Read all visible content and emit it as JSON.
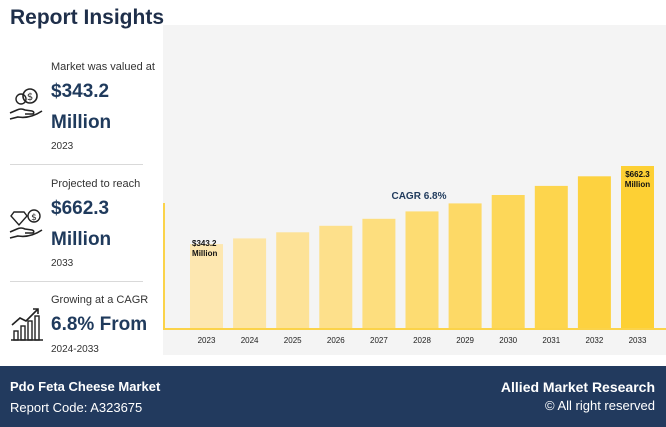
{
  "title": "Report Insights",
  "stats": [
    {
      "caption": "Market was valued at",
      "value_line1": "$343.2",
      "value_line2": "Million",
      "period": "2023",
      "icon": "money-in-hand-icon"
    },
    {
      "caption": "Projected to reach",
      "value_line1": "$662.3",
      "value_line2": "Million",
      "period": "2033",
      "icon": "diamond-coin-hand-icon"
    },
    {
      "caption": "Growing at a CAGR",
      "value_line1": "6.8% From",
      "period": "2024-2033",
      "icon": "growth-chart-icon"
    }
  ],
  "footer": {
    "market_name": "Pdo Feta Cheese Market",
    "report_code": "Report Code: A323675",
    "brand": "Allied Market Research",
    "rights": "© All right reserved"
  },
  "chart_data": {
    "type": "bar",
    "categories": [
      "2023",
      "2024",
      "2025",
      "2026",
      "2027",
      "2028",
      "2029",
      "2030",
      "2031",
      "2032",
      "2033"
    ],
    "values": [
      343.2,
      366.5,
      391.4,
      418.0,
      446.5,
      476.8,
      509.2,
      543.8,
      580.8,
      620.3,
      662.3
    ],
    "annotations": [
      {
        "text_line1": "$343.2",
        "text_line2": "Million",
        "category": "2023"
      },
      {
        "text_line1": "$662.3",
        "text_line2": "Million",
        "category": "2033"
      }
    ],
    "cagr_label": "CAGR 6.8%",
    "color_start": "#fde7b0",
    "color_end": "#fdd034",
    "axis_color": "#fbd34a",
    "grid": false,
    "ylim": [
      0,
      700
    ]
  }
}
